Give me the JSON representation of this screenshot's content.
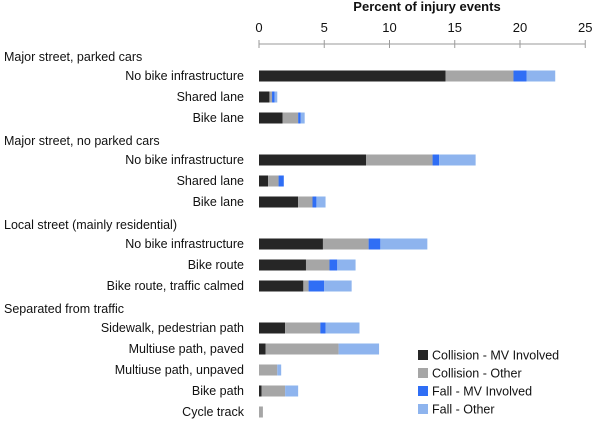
{
  "chart_data": {
    "type": "bar",
    "orientation": "horizontal",
    "stacked": true,
    "title": "Percent of injury events",
    "axis_position": "top",
    "xlim": [
      0,
      25
    ],
    "xticks": [
      "0",
      "5",
      "10",
      "15",
      "20",
      "25"
    ],
    "grid": false,
    "legend_position": "bottom-right",
    "groups": [
      {
        "label": "Major street, parked cars",
        "categories": [
          "No bike infrastructure",
          "Shared lane",
          "Bike lane"
        ]
      },
      {
        "label": "Major street, no parked cars",
        "categories": [
          "No bike infrastructure",
          "Shared lane",
          "Bike lane"
        ]
      },
      {
        "label": "Local street (mainly residential)",
        "categories": [
          "No bike infrastructure",
          "Bike route",
          "Bike route, traffic calmed"
        ]
      },
      {
        "label": "Separated from traffic",
        "categories": [
          "Sidewalk, pedestrian path",
          "Multiuse path, paved",
          "Multiuse path, unpaved",
          "Bike path",
          "Cycle track"
        ]
      }
    ],
    "series": [
      {
        "name": "Collision - MV Involved",
        "color": "#262626",
        "values": [
          14.3,
          0.8,
          1.8,
          8.2,
          0.7,
          3.0,
          4.9,
          3.6,
          3.4,
          2.0,
          0.5,
          0.0,
          0.2,
          0.0
        ]
      },
      {
        "name": "Collision - Other",
        "color": "#a6a6a6",
        "values": [
          5.2,
          0.2,
          1.2,
          5.1,
          0.8,
          1.1,
          3.5,
          1.8,
          0.4,
          2.7,
          5.6,
          1.4,
          1.8,
          0.3
        ]
      },
      {
        "name": "Fall - MV Involved",
        "color": "#2f6ef5",
        "values": [
          1.0,
          0.2,
          0.2,
          0.5,
          0.4,
          0.3,
          0.9,
          0.6,
          1.2,
          0.4,
          0.0,
          0.0,
          0.0,
          0.0
        ]
      },
      {
        "name": "Fall - Other",
        "color": "#8eb4ee",
        "values": [
          2.2,
          0.2,
          0.3,
          2.8,
          0.0,
          0.7,
          3.6,
          1.4,
          2.1,
          2.6,
          3.1,
          0.3,
          1.0,
          0.0
        ]
      }
    ]
  }
}
